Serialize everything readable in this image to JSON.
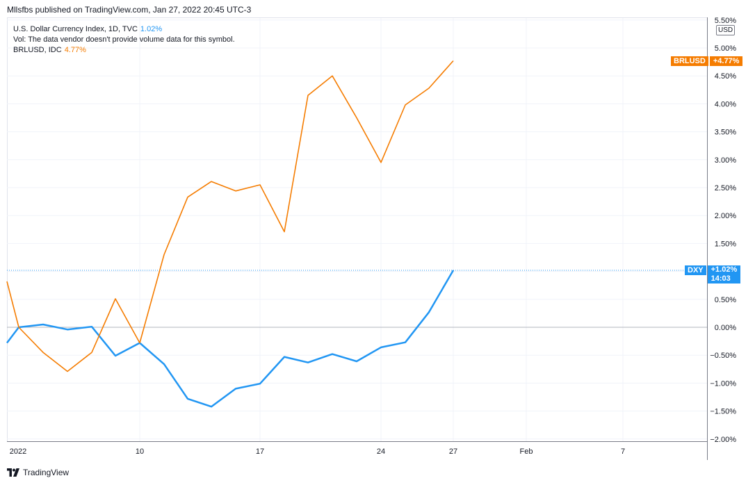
{
  "header": {
    "publisher": "Mllsfbs published on TradingView.com, Jan 27, 2022 20:45 UTC-3"
  },
  "legend": {
    "dxy_name": "U.S. Dollar Currency Index, 1D, TVC",
    "dxy_value": "1.02%",
    "vol_note": "Vol: The data vendor doesn't provide volume data for this symbol.",
    "brl_name": "BRLUSD, IDC",
    "brl_value": "4.77%"
  },
  "price_axis": {
    "unit": "USD",
    "ticks": [
      "5.50%",
      "5.00%",
      "4.50%",
      "4.00%",
      "3.50%",
      "3.00%",
      "2.50%",
      "2.00%",
      "1.50%",
      "1.00%",
      "0.50%",
      "0.00%",
      "−0.50%",
      "−1.00%",
      "−1.50%",
      "−2.00%"
    ]
  },
  "time_axis": {
    "labels": [
      "2022",
      "10",
      "17",
      "24",
      "27",
      "Feb",
      "7"
    ]
  },
  "tags": {
    "brl_symbol": "BRLUSD",
    "brl_value": "+4.77%",
    "dxy_symbol": "DXY",
    "dxy_value": "+1.02%",
    "dxy_countdown": "14:03"
  },
  "footer": {
    "brand": "TradingView"
  },
  "colors": {
    "dxy": "#2196f3",
    "brl": "#f57c00",
    "grid": "#f0f3fa",
    "axis": "#787b86"
  },
  "chart_data": {
    "type": "line",
    "ylabel": "",
    "ylim": [
      -2.0,
      5.5
    ],
    "x": [
      "Dec 30",
      "Dec 31",
      "Jan 3",
      "Jan 4",
      "Jan 5",
      "Jan 6",
      "Jan 7",
      "Jan 10",
      "Jan 11",
      "Jan 12",
      "Jan 13",
      "Jan 14",
      "Jan 17",
      "Jan 18",
      "Jan 19",
      "Jan 20",
      "Jan 21",
      "Jan 24",
      "Jan 25",
      "Jan 26",
      "Jan 27"
    ],
    "series": [
      {
        "name": "U.S. Dollar Currency Index, 1D, TVC",
        "values": [
          -0.28,
          0.0,
          0.05,
          -0.04,
          0.01,
          -0.51,
          -0.28,
          -0.66,
          -1.28,
          -1.42,
          -1.1,
          -1.01,
          -0.53,
          -0.63,
          -0.48,
          -0.61,
          -0.36,
          -0.27,
          0.27,
          null,
          1.02
        ]
      },
      {
        "name": "BRLUSD, IDC",
        "values": [
          0.82,
          0.0,
          -0.45,
          -0.79,
          -0.45,
          0.51,
          -0.28,
          1.3,
          2.33,
          2.61,
          2.44,
          2.55,
          1.71,
          4.15,
          4.5,
          3.75,
          2.95,
          3.98,
          4.28,
          null,
          4.77
        ]
      }
    ]
  }
}
